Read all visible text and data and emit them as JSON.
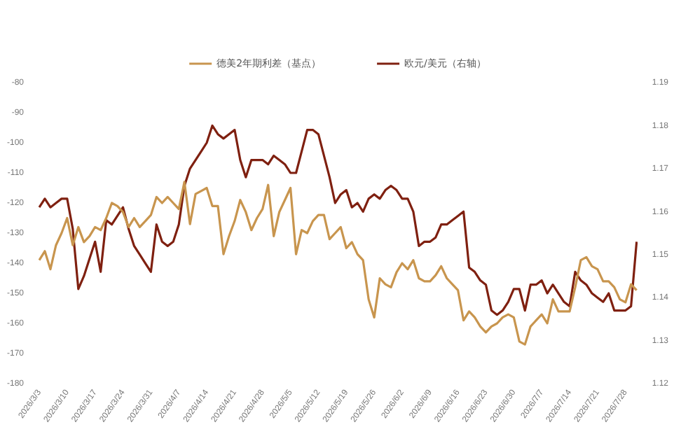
{
  "chart_data": {
    "type": "line",
    "categories": [
      "2026/3/3",
      null,
      null,
      null,
      null,
      "2026/3/10",
      null,
      null,
      null,
      null,
      "2026/3/17",
      null,
      null,
      null,
      null,
      "2026/3/24",
      null,
      null,
      null,
      null,
      "2026/3/31",
      null,
      null,
      null,
      null,
      "2026/4/7",
      null,
      null,
      null,
      null,
      "2026/4/14",
      null,
      null,
      null,
      null,
      "2026/4/21",
      null,
      null,
      null,
      null,
      "2026/4/28",
      null,
      null,
      null,
      null,
      "2026/5/5",
      null,
      null,
      null,
      null,
      "2026/5/12",
      null,
      null,
      null,
      null,
      "2026/5/19",
      null,
      null,
      null,
      null,
      "2026/5/26",
      null,
      null,
      null,
      null,
      "2026/6/2",
      null,
      null,
      null,
      null,
      "2026/6/9",
      null,
      null,
      null,
      null,
      "2026/6/16",
      null,
      null,
      null,
      null,
      "2026/6/23",
      null,
      null,
      null,
      null,
      "2026/6/30",
      null,
      null,
      null,
      null,
      "2026/7/7",
      null,
      null,
      null,
      null,
      "2026/7/14",
      null,
      null,
      null,
      null,
      "2026/7/21",
      null,
      null,
      null,
      null,
      "2026/7/28",
      null,
      null
    ],
    "series": [
      {
        "name": "德美2年期利差（基点）",
        "color": "#c8954e",
        "values": [
          -139,
          -136,
          -142,
          -134,
          -130,
          -125,
          -134,
          -128,
          -133,
          -131,
          -128,
          -129,
          -125,
          -120,
          -121,
          -123,
          -128,
          -125,
          -128,
          -126,
          -124,
          -118,
          -120,
          -118,
          -120,
          -122,
          -113,
          -127,
          -117,
          -116,
          -115,
          -121,
          -121,
          -137,
          -131,
          -126,
          -119,
          -123,
          -129,
          -125,
          -122,
          -114,
          -131,
          -123,
          -119,
          -115,
          -137,
          -129,
          -130,
          -126,
          -124,
          -124,
          -132,
          -130,
          -128,
          -135,
          -133,
          -137,
          -139,
          -152,
          -158,
          -145,
          -147,
          -148,
          -143,
          -140,
          -142,
          -139,
          -145,
          -146,
          -146,
          -144,
          -141,
          -145,
          -147,
          -149,
          -159,
          -156,
          -158,
          -161,
          -163,
          -161,
          -160,
          -158,
          -157,
          -158,
          -166,
          -167,
          -161,
          -159,
          -157,
          -160,
          -152,
          -156,
          -156,
          -156,
          -148,
          -139,
          -138,
          -141,
          -142,
          -146,
          -146,
          -148,
          -152,
          -153,
          -147,
          -149
        ]
      },
      {
        "name": "欧元/美元（右轴）",
        "color": "#7f2010",
        "axis": "y2",
        "values": [
          1.161,
          1.163,
          1.161,
          1.162,
          1.163,
          1.163,
          1.156,
          1.142,
          1.145,
          1.149,
          1.153,
          1.146,
          1.158,
          1.157,
          1.159,
          1.161,
          1.156,
          1.152,
          1.15,
          1.148,
          1.146,
          1.157,
          1.153,
          1.152,
          1.153,
          1.157,
          1.166,
          1.17,
          1.172,
          1.174,
          1.176,
          1.18,
          1.178,
          1.177,
          1.178,
          1.179,
          1.172,
          1.168,
          1.172,
          1.172,
          1.172,
          1.171,
          1.173,
          1.172,
          1.171,
          1.169,
          1.169,
          1.174,
          1.179,
          1.179,
          1.178,
          1.173,
          1.168,
          1.162,
          1.164,
          1.165,
          1.161,
          1.162,
          1.16,
          1.163,
          1.164,
          1.163,
          1.165,
          1.166,
          1.165,
          1.163,
          1.163,
          1.16,
          1.152,
          1.153,
          1.153,
          1.154,
          1.157,
          1.157,
          1.158,
          1.159,
          1.16,
          1.147,
          1.146,
          1.144,
          1.143,
          1.137,
          1.136,
          1.137,
          1.139,
          1.142,
          1.142,
          1.137,
          1.143,
          1.143,
          1.144,
          1.141,
          1.143,
          1.141,
          1.139,
          1.138,
          1.146,
          1.144,
          1.143,
          1.141,
          1.14,
          1.139,
          1.141,
          1.137,
          1.137,
          1.137,
          1.138,
          1.153
        ]
      }
    ],
    "ylim": [
      -180,
      -80
    ],
    "yticks": [
      -80,
      -90,
      -100,
      -110,
      -120,
      -130,
      -140,
      -150,
      -160,
      -170,
      -180
    ],
    "y2lim": [
      1.12,
      1.19
    ],
    "y2ticks": [
      1.12,
      1.13,
      1.14,
      1.15,
      1.16,
      1.17,
      1.18,
      1.19
    ],
    "legend": "top",
    "marker": "none",
    "line_style": "solid"
  }
}
